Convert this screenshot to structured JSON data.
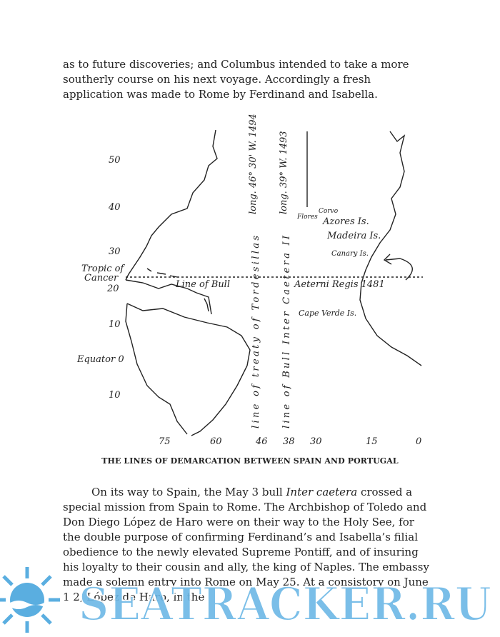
{
  "body": {
    "paragraph_1": "as to future discoveries; and Columbus intended to take a more southerly course on his next voyage. Accordingly a fresh application was made to Rome by Ferdinand and Isabella.",
    "paragraph_2": {
      "before": "On its way to Spain, the May 3 bull ",
      "italic": "Inter caetera",
      "after": " crossed a special mission from Spain to Rome. The Archbishop of Toledo and Don Diego López de Haro were on their way to the Holy See, for the double purpose of confirming Ferdinand’s and Isabella’s filial obedience to the newly elevated Supreme Pontiff, and of insuring his loyalty to their cousin and ally, the king of Naples. The embassy made a solemn entry into Rome on May 25. At a consistory on June 1 2, López de Haro, in the"
    }
  },
  "figure": {
    "latitude_labels": [
      50,
      40,
      30,
      20,
      10,
      10
    ],
    "longitude_labels": [
      75,
      60,
      46,
      38,
      30,
      15,
      0
    ],
    "labels": {
      "tropic_1": "Tropic of",
      "tropic_2": "Cancer",
      "equator": "Equator 0",
      "line_bull": "Line of Bull",
      "aeterni": "Aeterni Regis 1481",
      "flores": "Flores",
      "corvo": "Corvo",
      "azores": "Azores Is.",
      "madeira": "Madeira Is.",
      "canary": "Canary Is.",
      "cape_verde": "Cape Verde Is.",
      "long_1494": "long. 46° 30' W. 1494",
      "long_1493": "long. 39° W. 1493",
      "tordesillas": "line of treaty of Tordesillas",
      "inter_caetera": "line of Bull Inter Caetera II"
    },
    "caption": "THE LINES OF DEMARCATION BETWEEN SPAIN AND PORTUGAL"
  },
  "watermark": "SEATRACKER.RU"
}
